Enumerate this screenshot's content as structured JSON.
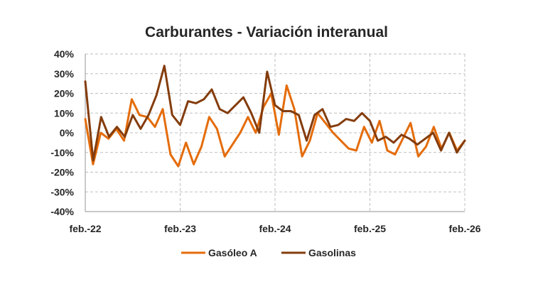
{
  "chart_data": {
    "type": "line",
    "title": "Carburantes - Variación interanual",
    "xlabel": "",
    "ylabel": "",
    "ylim": [
      -40,
      40
    ],
    "y_ticks": [
      40,
      30,
      20,
      10,
      0,
      -10,
      -20,
      -30,
      -40
    ],
    "y_tick_labels": [
      "40%",
      "30%",
      "20%",
      "10%",
      "0%",
      "-10%",
      "-20%",
      "-30%",
      "-40%"
    ],
    "x_tick_labels": [
      "feb.-22",
      "feb.-23",
      "feb.-24",
      "feb.-25",
      "feb.-26"
    ],
    "grid": true,
    "legend_position": "bottom",
    "colors": {
      "Gasóleo A": "#E46C0A",
      "Gasolinas": "#843C0C",
      "grid": "#BFBFBF",
      "axis": "#A6A6A6"
    },
    "series": [
      {
        "name": "Gasóleo A",
        "values": [
          7,
          -16,
          0,
          -3,
          2,
          -4,
          17,
          9,
          8,
          3,
          12,
          -11,
          -17,
          -5,
          -16,
          -7,
          8,
          2,
          -12,
          -6,
          0,
          8,
          0,
          13,
          20,
          -1,
          24,
          12,
          -12,
          -4,
          10,
          5,
          0,
          -4,
          -8,
          -9,
          3,
          -5,
          6,
          -9,
          -11,
          -3,
          5,
          -12,
          -7,
          3,
          -8,
          0,
          -9,
          -4
        ]
      },
      {
        "name": "Gasolinas",
        "values": [
          26,
          -14,
          8,
          -2,
          3,
          -2,
          9,
          2,
          9,
          19,
          34,
          9,
          4,
          16,
          15,
          17,
          22,
          12,
          10,
          14,
          18,
          10,
          0,
          31,
          14,
          11,
          11,
          9,
          -4,
          9,
          12,
          3,
          4,
          7,
          6,
          10,
          6,
          -4,
          -2,
          -5,
          -1,
          -3,
          -6,
          -3,
          0,
          -9,
          0,
          -10,
          -4
        ]
      }
    ]
  }
}
